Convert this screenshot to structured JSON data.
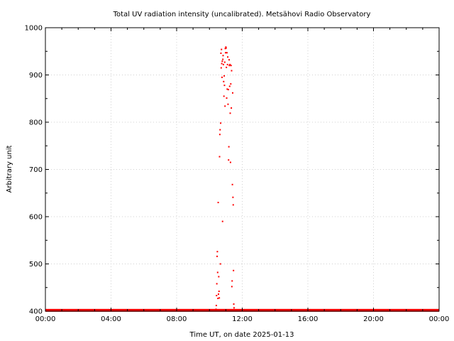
{
  "chart_data": {
    "type": "scatter",
    "title": "Total UV radiation intensity (uncalibrated). Metsähovi Radio Observatory",
    "xlabel": "Time UT, on date 2025-01-13",
    "ylabel": "Arbitrary unit",
    "xlim": [
      "00:00",
      "24:00"
    ],
    "ylim": [
      400,
      1000
    ],
    "x_ticks": [
      "00:00",
      "04:00",
      "08:00",
      "12:00",
      "16:00",
      "20:00",
      "00:00"
    ],
    "y_ticks": [
      400,
      500,
      600,
      700,
      800,
      900,
      1000
    ],
    "grid": true,
    "point_color": "#ff0000",
    "baseline": {
      "value": 401,
      "from": "00:00",
      "to": "24:00",
      "note_color": "#ff0000"
    },
    "series": [
      {
        "points": [
          {
            "x": "10:24",
            "y": 404
          },
          {
            "x": "10:25",
            "y": 412
          },
          {
            "x": "10:26",
            "y": 433
          },
          {
            "x": "10:27",
            "y": 458
          },
          {
            "x": "10:28",
            "y": 516
          },
          {
            "x": "10:29",
            "y": 526
          },
          {
            "x": "10:30",
            "y": 482
          },
          {
            "x": "10:31",
            "y": 427
          },
          {
            "x": "10:32",
            "y": 630
          },
          {
            "x": "10:33",
            "y": 436
          },
          {
            "x": "10:34",
            "y": 473
          },
          {
            "x": "10:35",
            "y": 442
          },
          {
            "x": "10:36",
            "y": 428
          },
          {
            "x": "10:37",
            "y": 727
          },
          {
            "x": "10:38",
            "y": 774
          },
          {
            "x": "10:39",
            "y": 784
          },
          {
            "x": "10:40",
            "y": 500
          },
          {
            "x": "10:41",
            "y": 798
          },
          {
            "x": "10:42",
            "y": 946
          },
          {
            "x": "10:43",
            "y": 915
          },
          {
            "x": "10:44",
            "y": 954
          },
          {
            "x": "10:45",
            "y": 924
          },
          {
            "x": "10:46",
            "y": 895
          },
          {
            "x": "10:47",
            "y": 929
          },
          {
            "x": "10:48",
            "y": 590
          },
          {
            "x": "10:49",
            "y": 933
          },
          {
            "x": "10:50",
            "y": 941
          },
          {
            "x": "10:51",
            "y": 922
          },
          {
            "x": "10:52",
            "y": 886
          },
          {
            "x": "10:53",
            "y": 855
          },
          {
            "x": "10:54",
            "y": 898
          },
          {
            "x": "10:55",
            "y": 878
          },
          {
            "x": "10:56",
            "y": 927
          },
          {
            "x": "10:57",
            "y": 834
          },
          {
            "x": "10:58",
            "y": 956
          },
          {
            "x": "10:59",
            "y": 947
          },
          {
            "x": "11:00",
            "y": 959
          },
          {
            "x": "11:01",
            "y": 957
          },
          {
            "x": "11:02",
            "y": 916
          },
          {
            "x": "11:03",
            "y": 851
          },
          {
            "x": "11:04",
            "y": 947
          },
          {
            "x": "11:05",
            "y": 870
          },
          {
            "x": "11:06",
            "y": 922
          },
          {
            "x": "11:07",
            "y": 938
          },
          {
            "x": "11:08",
            "y": 838
          },
          {
            "x": "11:09",
            "y": 869
          },
          {
            "x": "11:10",
            "y": 720
          },
          {
            "x": "11:11",
            "y": 748
          },
          {
            "x": "11:12",
            "y": 932
          },
          {
            "x": "11:13",
            "y": 920
          },
          {
            "x": "11:14",
            "y": 876
          },
          {
            "x": "11:15",
            "y": 922
          },
          {
            "x": "11:16",
            "y": 819
          },
          {
            "x": "11:17",
            "y": 715
          },
          {
            "x": "11:18",
            "y": 881
          },
          {
            "x": "11:19",
            "y": 920
          },
          {
            "x": "11:20",
            "y": 830
          },
          {
            "x": "11:21",
            "y": 909
          },
          {
            "x": "11:22",
            "y": 452
          },
          {
            "x": "11:23",
            "y": 464
          },
          {
            "x": "11:24",
            "y": 668
          },
          {
            "x": "11:25",
            "y": 862
          },
          {
            "x": "11:26",
            "y": 641
          },
          {
            "x": "11:27",
            "y": 625
          },
          {
            "x": "11:28",
            "y": 486
          },
          {
            "x": "11:29",
            "y": 415
          },
          {
            "x": "11:30",
            "y": 407
          }
        ]
      }
    ]
  }
}
